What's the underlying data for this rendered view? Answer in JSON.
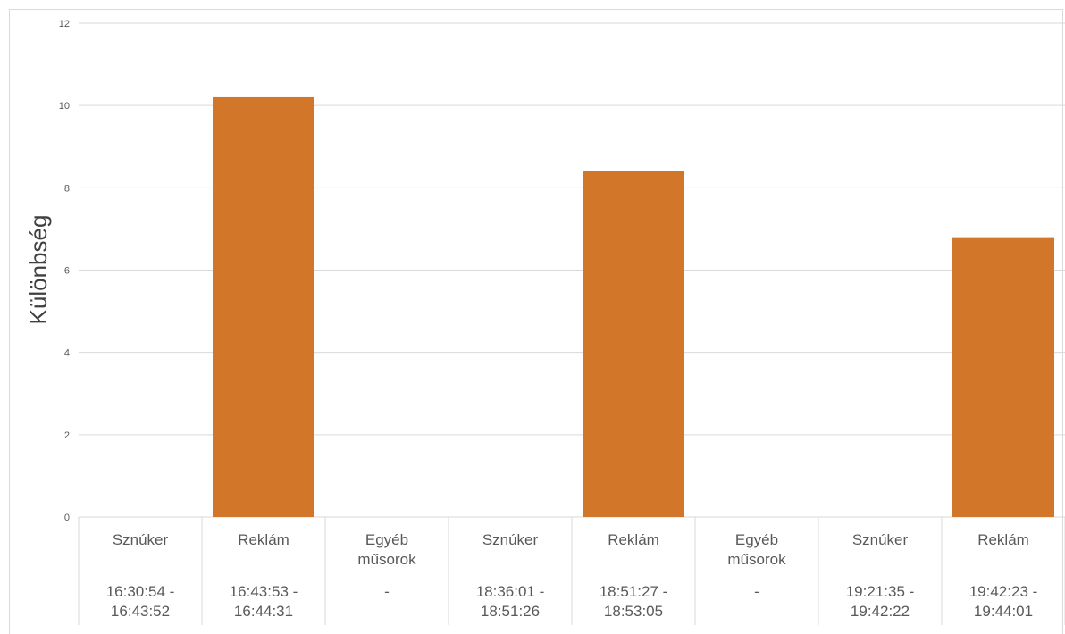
{
  "chart_data": {
    "type": "bar",
    "ylabel": "Különbség",
    "ylim": [
      0,
      12
    ],
    "yticks": [
      0,
      2,
      4,
      6,
      8,
      10,
      12
    ],
    "grid": true,
    "bar_color": "#d2772a",
    "gridline_color": "#d9d9d9",
    "categories": [
      {
        "name": "Sznúker",
        "time": "16:30:54 - 16:43:52"
      },
      {
        "name": "Reklám",
        "time": "16:43:53 - 16:44:31"
      },
      {
        "name": "Egyéb műsorok",
        "time": "-"
      },
      {
        "name": "Sznúker",
        "time": "18:36:01 - 18:51:26"
      },
      {
        "name": "Reklám",
        "time": "18:51:27 - 18:53:05"
      },
      {
        "name": "Egyéb műsorok",
        "time": "-"
      },
      {
        "name": "Sznúker",
        "time": "19:21:35 - 19:42:22"
      },
      {
        "name": "Reklám",
        "time": "19:42:23 - 19:44:01"
      }
    ],
    "values": [
      0,
      10.2,
      0,
      0,
      8.4,
      0,
      0,
      6.8
    ]
  }
}
